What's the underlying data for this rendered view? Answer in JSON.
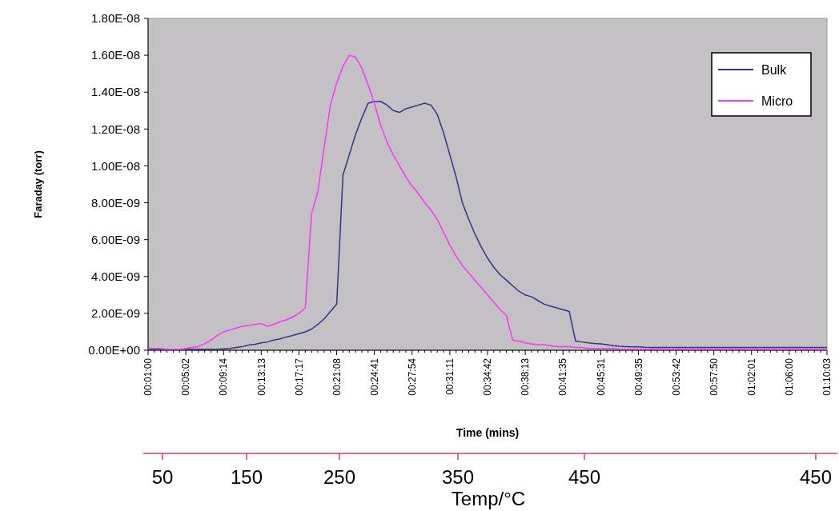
{
  "chart_data": {
    "type": "line",
    "ylabel": "Faraday (torr)",
    "xlabel": "Time (mins)",
    "annotations": [
      "50",
      "150",
      "250",
      "350",
      "450",
      "450",
      "Temp/°C"
    ],
    "categories": [
      "00:01:00",
      null,
      null,
      null,
      null,
      null,
      "00:05:02",
      null,
      null,
      null,
      null,
      null,
      "00:09:14",
      null,
      null,
      null,
      null,
      null,
      "00:13:13",
      null,
      null,
      null,
      null,
      null,
      "00:17:17",
      null,
      null,
      null,
      null,
      null,
      "00:21:08",
      null,
      null,
      null,
      null,
      null,
      "00:24:41",
      null,
      null,
      null,
      null,
      null,
      "00:27:54",
      null,
      null,
      null,
      null,
      null,
      "00:31:11",
      null,
      null,
      null,
      null,
      null,
      "00:34:42",
      null,
      null,
      null,
      null,
      null,
      "00:38:13",
      null,
      null,
      null,
      null,
      null,
      "00:41:35",
      null,
      null,
      null,
      null,
      null,
      "00:45:31",
      null,
      null,
      null,
      null,
      null,
      "00:49:35",
      null,
      null,
      null,
      null,
      null,
      "00:53:42",
      null,
      null,
      null,
      null,
      null,
      "00:57:50",
      null,
      null,
      null,
      null,
      null,
      "01:02:01",
      null,
      null,
      null,
      null,
      null,
      "01:06:00",
      null,
      null,
      null,
      null,
      null,
      "01:10:03"
    ],
    "series": [
      {
        "name": "Bulk",
        "color": "#33338a",
        "values": [
          5e-11,
          5e-11,
          5e-11,
          5e-11,
          5e-11,
          5e-11,
          5e-11,
          5e-11,
          5e-11,
          5e-11,
          5e-11,
          5e-11,
          8e-11,
          1e-10,
          1.5e-10,
          2e-10,
          2.8e-10,
          3.3e-10,
          4e-10,
          4.5e-10,
          5.5e-10,
          6.2e-10,
          7.2e-10,
          8e-10,
          9e-10,
          1e-09,
          1.15e-09,
          1.4e-09,
          1.7e-09,
          2.1e-09,
          2.5e-09,
          9.5e-09,
          1.06e-08,
          1.17e-08,
          1.26e-08,
          1.34e-08,
          1.35e-08,
          1.35e-08,
          1.33e-08,
          1.3e-08,
          1.29e-08,
          1.31e-08,
          1.32e-08,
          1.33e-08,
          1.34e-08,
          1.33e-08,
          1.28e-08,
          1.18e-08,
          1.06e-08,
          9.4e-09,
          8e-09,
          7.1e-09,
          6.3e-09,
          5.6e-09,
          5e-09,
          4.5e-09,
          4.1e-09,
          3.8e-09,
          3.5e-09,
          3.2e-09,
          3e-09,
          2.9e-09,
          2.7e-09,
          2.5e-09,
          2.4e-09,
          2.3e-09,
          2.2e-09,
          2.1e-09,
          5e-10,
          4.5e-10,
          4e-10,
          3.7e-10,
          3.5e-10,
          3e-10,
          2.5e-10,
          2.2e-10,
          2e-10,
          1.8e-10,
          1.8e-10,
          1.6e-10,
          1.5e-10,
          1.5e-10,
          1.5e-10,
          1.5e-10,
          1.5e-10,
          1.5e-10,
          1.5e-10,
          1.5e-10,
          1.5e-10,
          1.5e-10,
          1.5e-10,
          1.5e-10,
          1.5e-10,
          1.5e-10,
          1.5e-10,
          1.5e-10,
          1.5e-10,
          1.5e-10,
          1.5e-10,
          1.5e-10,
          1.5e-10,
          1.5e-10,
          1.5e-10,
          1.5e-10,
          1.5e-10,
          1.5e-10,
          1.5e-10,
          1.5e-10,
          1.5e-10
        ]
      },
      {
        "name": "Micro",
        "color": "#ff33ff",
        "values": [
          1e-10,
          1e-10,
          1e-10,
          5e-11,
          5e-11,
          5e-11,
          1e-10,
          1.5e-10,
          2e-10,
          3.5e-10,
          5.5e-10,
          8e-10,
          1e-09,
          1.1e-09,
          1.2e-09,
          1.3e-09,
          1.35e-09,
          1.4e-09,
          1.45e-09,
          1.3e-09,
          1.4e-09,
          1.55e-09,
          1.65e-09,
          1.8e-09,
          2e-09,
          2.3e-09,
          7.4e-09,
          8.6e-09,
          1.1e-08,
          1.33e-08,
          1.45e-08,
          1.54e-08,
          1.6e-08,
          1.59e-08,
          1.53e-08,
          1.44e-08,
          1.34e-08,
          1.22e-08,
          1.13e-08,
          1.06e-08,
          1e-08,
          9.4e-09,
          8.9e-09,
          8.5e-09,
          8e-09,
          7.6e-09,
          7.1e-09,
          6.4e-09,
          5.7e-09,
          5.1e-09,
          4.6e-09,
          4.2e-09,
          3.8e-09,
          3.4e-09,
          3e-09,
          2.6e-09,
          2.2e-09,
          1.9e-09,
          5.5e-10,
          5e-10,
          4e-10,
          3.5e-10,
          3e-10,
          3e-10,
          2.5e-10,
          2e-10,
          2e-10,
          2e-10,
          1.5e-10,
          1.5e-10,
          1e-10,
          1e-10,
          1e-10,
          1e-10,
          1e-10,
          5e-11,
          5e-11,
          5e-11,
          5e-11,
          5e-11,
          5e-11,
          5e-11,
          5e-11,
          5e-11,
          5e-11,
          5e-11,
          5e-11,
          5e-11,
          5e-11,
          5e-11,
          5e-11,
          5e-11,
          5e-11,
          5e-11,
          5e-11,
          5e-11,
          5e-11,
          5e-11,
          5e-11,
          5e-11,
          5e-11,
          5e-11,
          5e-11,
          5e-11,
          5e-11,
          5e-11,
          5e-11,
          5e-11,
          5e-11
        ]
      }
    ],
    "ylim": [
      0,
      1.8e-08
    ],
    "yticks": [
      {
        "value": 0,
        "label": "0.00E+00"
      },
      {
        "value": 2e-09,
        "label": "2.00E-09"
      },
      {
        "value": 4e-09,
        "label": "4.00E-09"
      },
      {
        "value": 6e-09,
        "label": "6.00E-09"
      },
      {
        "value": 8e-09,
        "label": "8.00E-09"
      },
      {
        "value": 1e-08,
        "label": "1.00E-08"
      },
      {
        "value": 1.2e-08,
        "label": "1.20E-08"
      },
      {
        "value": 1.4e-08,
        "label": "1.40E-08"
      },
      {
        "value": 1.6e-08,
        "label": "1.60E-08"
      },
      {
        "value": 1.8e-08,
        "label": "1.80E-08"
      }
    ],
    "legend": "top right",
    "grid": false,
    "marker": "none",
    "line_style": "solid"
  }
}
